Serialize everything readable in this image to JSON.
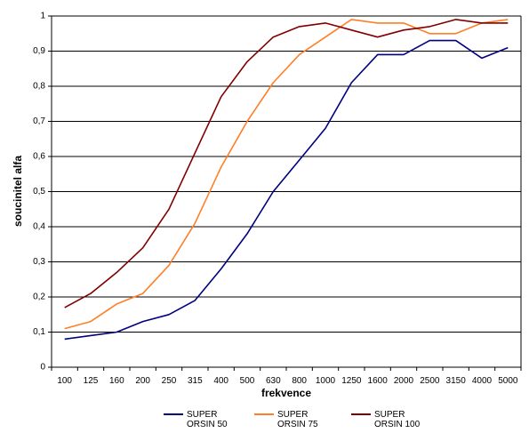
{
  "chart_data": {
    "type": "line",
    "xlabel": "frekvence",
    "ylabel": "soucinitel alfa",
    "ylim": [
      0,
      1
    ],
    "y_ticks": [
      "0",
      "0,1",
      "0,2",
      "0,3",
      "0,4",
      "0,5",
      "0,6",
      "0,7",
      "0,8",
      "0,9",
      "1"
    ],
    "categories": [
      "100",
      "125",
      "160",
      "200",
      "250",
      "315",
      "400",
      "500",
      "630",
      "800",
      "1000",
      "1250",
      "1600",
      "2000",
      "2500",
      "3150",
      "4000",
      "5000"
    ],
    "grid": "horizontal",
    "legend_position": "bottom",
    "series": [
      {
        "name_lines": [
          "SUPER",
          "ORSIN 50"
        ],
        "color": "#000080",
        "values": [
          0.08,
          0.09,
          0.1,
          0.13,
          0.15,
          0.19,
          0.28,
          0.38,
          0.5,
          0.59,
          0.68,
          0.81,
          0.89,
          0.89,
          0.93,
          0.93,
          0.88,
          0.91
        ]
      },
      {
        "name_lines": [
          "SUPER",
          "ORSIN 75"
        ],
        "color": "#FF7F27",
        "values": [
          0.11,
          0.13,
          0.18,
          0.21,
          0.29,
          0.41,
          0.57,
          0.7,
          0.81,
          0.89,
          0.94,
          0.99,
          0.98,
          0.98,
          0.95,
          0.95,
          0.98,
          0.99
        ]
      },
      {
        "name_lines": [
          "SUPER",
          "ORSIN 100"
        ],
        "color": "#800000",
        "values": [
          0.17,
          0.21,
          0.27,
          0.34,
          0.45,
          0.61,
          0.77,
          0.87,
          0.94,
          0.97,
          0.98,
          0.96,
          0.94,
          0.96,
          0.97,
          0.99,
          0.98,
          0.98
        ]
      }
    ]
  }
}
